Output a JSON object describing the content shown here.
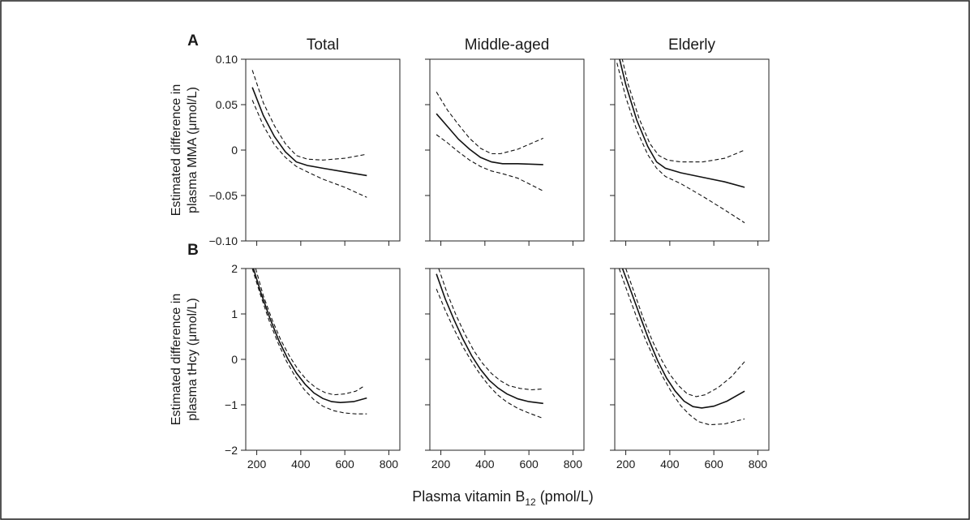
{
  "chart_data": [
    {
      "type": "line",
      "panel_letter": "A",
      "title": "Total",
      "ylabel_line1": "Estimated difference in",
      "ylabel_line2": "plasma MMA (μmol/L)",
      "xlim": [
        150,
        850
      ],
      "ylim": [
        -0.1,
        0.1
      ],
      "xticks": [
        200,
        400,
        600,
        800
      ],
      "yticks": [
        -0.1,
        -0.05,
        0,
        0.05,
        0.1
      ],
      "ytick_labels": [
        "−0.10",
        "−0.05",
        "0",
        "0.05",
        "0.10"
      ],
      "series": [
        {
          "style": "solid",
          "x": [
            180,
            230,
            280,
            330,
            380,
            430,
            500,
            600,
            700
          ],
          "y": [
            0.069,
            0.038,
            0.015,
            -0.002,
            -0.013,
            -0.017,
            -0.02,
            -0.024,
            -0.028
          ]
        },
        {
          "style": "dashed",
          "x": [
            180,
            230,
            280,
            330,
            380,
            430,
            500,
            600,
            690
          ],
          "y": [
            0.088,
            0.052,
            0.027,
            0.007,
            -0.006,
            -0.01,
            -0.011,
            -0.009,
            -0.005
          ]
        },
        {
          "style": "dashed",
          "x": [
            180,
            230,
            280,
            330,
            380,
            430,
            500,
            600,
            700
          ],
          "y": [
            0.055,
            0.027,
            0.006,
            -0.008,
            -0.018,
            -0.024,
            -0.032,
            -0.041,
            -0.052
          ]
        }
      ]
    },
    {
      "type": "line",
      "title": "Middle-aged",
      "xlim": [
        150,
        850
      ],
      "ylim": [
        -0.1,
        0.1
      ],
      "xticks": [
        200,
        400,
        600,
        800
      ],
      "series": [
        {
          "style": "solid",
          "x": [
            180,
            230,
            280,
            330,
            380,
            430,
            480,
            550,
            665
          ],
          "y": [
            0.04,
            0.026,
            0.012,
            0.001,
            -0.008,
            -0.013,
            -0.015,
            -0.015,
            -0.016
          ]
        },
        {
          "style": "dashed",
          "x": [
            180,
            230,
            280,
            330,
            380,
            430,
            470,
            550,
            665
          ],
          "y": [
            0.064,
            0.044,
            0.028,
            0.013,
            0.002,
            -0.004,
            -0.004,
            0.001,
            0.013
          ]
        },
        {
          "style": "dashed",
          "x": [
            180,
            230,
            280,
            330,
            380,
            430,
            480,
            550,
            665
          ],
          "y": [
            0.017,
            0.008,
            -0.002,
            -0.011,
            -0.018,
            -0.023,
            -0.026,
            -0.031,
            -0.045
          ]
        }
      ]
    },
    {
      "type": "line",
      "title": "Elderly",
      "xlim": [
        150,
        850
      ],
      "ylim": [
        -0.1,
        0.1
      ],
      "xticks": [
        200,
        400,
        600,
        800
      ],
      "series": [
        {
          "style": "solid",
          "x": [
            160,
            200,
            250,
            300,
            340,
            380,
            450,
            550,
            650,
            740
          ],
          "y": [
            0.112,
            0.072,
            0.033,
            0.004,
            -0.013,
            -0.02,
            -0.025,
            -0.03,
            -0.035,
            -0.041
          ]
        },
        {
          "style": "dashed",
          "x": [
            170,
            210,
            260,
            310,
            350,
            390,
            450,
            550,
            650,
            740
          ],
          "y": [
            0.115,
            0.073,
            0.035,
            0.007,
            -0.006,
            -0.011,
            -0.013,
            -0.013,
            -0.009,
            0.0
          ]
        },
        {
          "style": "dashed",
          "x": [
            160,
            200,
            250,
            300,
            340,
            380,
            450,
            550,
            650,
            740
          ],
          "y": [
            0.096,
            0.058,
            0.022,
            -0.005,
            -0.02,
            -0.029,
            -0.037,
            -0.051,
            -0.066,
            -0.08
          ]
        }
      ]
    },
    {
      "type": "line",
      "panel_letter": "B",
      "ylabel_line1": "Estimated difference in",
      "ylabel_line2": "plasma tHcy (μmol/L)",
      "xlim": [
        150,
        850
      ],
      "ylim": [
        -2,
        2
      ],
      "xticks": [
        200,
        400,
        600,
        800
      ],
      "xtick_labels": [
        "200",
        "400",
        "600",
        "800"
      ],
      "yticks": [
        -2,
        -1,
        0,
        1,
        2
      ],
      "ytick_labels": [
        "−2",
        "−1",
        "0",
        "1",
        "2"
      ],
      "series": [
        {
          "style": "solid",
          "x": [
            185,
            220,
            260,
            300,
            340,
            380,
            420,
            460,
            500,
            540,
            580,
            640,
            700
          ],
          "y": [
            2.0,
            1.45,
            0.9,
            0.42,
            0.02,
            -0.3,
            -0.55,
            -0.74,
            -0.86,
            -0.93,
            -0.95,
            -0.93,
            -0.85
          ]
        },
        {
          "style": "dashed",
          "x": [
            195,
            230,
            270,
            310,
            350,
            390,
            430,
            470,
            510,
            550,
            600,
            650,
            690
          ],
          "y": [
            2.0,
            1.4,
            0.87,
            0.42,
            0.06,
            -0.24,
            -0.47,
            -0.63,
            -0.73,
            -0.78,
            -0.76,
            -0.7,
            -0.58
          ]
        },
        {
          "style": "dashed",
          "x": [
            180,
            215,
            255,
            295,
            335,
            375,
            415,
            460,
            500,
            550,
            600,
            650,
            700
          ],
          "y": [
            2.0,
            1.45,
            0.87,
            0.38,
            -0.04,
            -0.38,
            -0.66,
            -0.89,
            -1.03,
            -1.13,
            -1.18,
            -1.2,
            -1.2
          ]
        }
      ]
    },
    {
      "type": "line",
      "xlim": [
        150,
        850
      ],
      "ylim": [
        -2,
        2
      ],
      "xticks": [
        200,
        400,
        600,
        800
      ],
      "xtick_labels": [
        "200",
        "400",
        "600",
        "800"
      ],
      "series": [
        {
          "style": "solid",
          "x": [
            180,
            220,
            260,
            300,
            340,
            380,
            420,
            460,
            500,
            550,
            600,
            665
          ],
          "y": [
            1.88,
            1.33,
            0.87,
            0.45,
            0.08,
            -0.22,
            -0.46,
            -0.63,
            -0.76,
            -0.87,
            -0.93,
            -0.97
          ]
        },
        {
          "style": "dashed",
          "x": [
            190,
            230,
            270,
            310,
            350,
            390,
            430,
            470,
            510,
            560,
            610,
            665
          ],
          "y": [
            2.0,
            1.44,
            0.96,
            0.55,
            0.19,
            -0.09,
            -0.31,
            -0.47,
            -0.58,
            -0.64,
            -0.67,
            -0.65
          ]
        },
        {
          "style": "dashed",
          "x": [
            180,
            220,
            260,
            300,
            340,
            380,
            420,
            460,
            500,
            550,
            600,
            665
          ],
          "y": [
            1.55,
            1.08,
            0.66,
            0.28,
            -0.05,
            -0.34,
            -0.59,
            -0.79,
            -0.94,
            -1.08,
            -1.18,
            -1.3
          ]
        }
      ]
    },
    {
      "type": "line",
      "xlim": [
        150,
        850
      ],
      "ylim": [
        -2,
        2
      ],
      "xticks": [
        200,
        400,
        600,
        800
      ],
      "xtick_labels": [
        "200",
        "400",
        "600",
        "800"
      ],
      "series": [
        {
          "style": "solid",
          "x": [
            185,
            225,
            265,
            305,
            345,
            385,
            425,
            465,
            505,
            545,
            600,
            660,
            740
          ],
          "y": [
            2.0,
            1.48,
            0.95,
            0.43,
            -0.03,
            -0.41,
            -0.7,
            -0.92,
            -1.04,
            -1.07,
            -1.03,
            -0.92,
            -0.7
          ]
        },
        {
          "style": "dashed",
          "x": [
            200,
            240,
            280,
            320,
            360,
            400,
            440,
            480,
            520,
            560,
            620,
            680,
            740
          ],
          "y": [
            2.0,
            1.45,
            0.9,
            0.42,
            0.01,
            -0.33,
            -0.58,
            -0.76,
            -0.82,
            -0.78,
            -0.62,
            -0.38,
            -0.05
          ]
        },
        {
          "style": "dashed",
          "x": [
            170,
            210,
            250,
            290,
            330,
            370,
            410,
            450,
            490,
            530,
            580,
            650,
            740
          ],
          "y": [
            2.0,
            1.45,
            0.92,
            0.43,
            0.0,
            -0.4,
            -0.74,
            -1.02,
            -1.22,
            -1.37,
            -1.44,
            -1.42,
            -1.31
          ]
        }
      ]
    }
  ],
  "x_axis_title": "Plasma vitamin B",
  "x_axis_subscript": "12",
  "x_axis_unit": " (pmol/L)"
}
